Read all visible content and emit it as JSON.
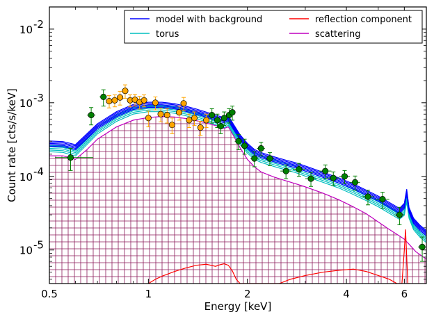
{
  "chart_data": {
    "type": "line",
    "xlabel": "Energy [keV]",
    "ylabel": "Count rate [cts/s/keV]",
    "xscale": "log",
    "yscale": "log",
    "xlim": [
      0.5,
      7.0
    ],
    "ylim": [
      3.5e-06,
      0.02
    ],
    "grid": false,
    "legend_position": "top-right",
    "xticks": [
      {
        "value": 0.5,
        "label": "0.5"
      },
      {
        "value": 1,
        "label": "1"
      },
      {
        "value": 2,
        "label": "2"
      },
      {
        "value": 4,
        "label": "4"
      },
      {
        "value": 6,
        "label": "6"
      }
    ],
    "yticks": [
      {
        "value": 1e-05,
        "base": "10",
        "exp": "-5"
      },
      {
        "value": 0.0001,
        "base": "10",
        "exp": "-4"
      },
      {
        "value": 0.001,
        "base": "10",
        "exp": "-3"
      },
      {
        "value": 0.01,
        "base": "10",
        "exp": "-2"
      }
    ],
    "legend": [
      {
        "label": "model with background",
        "color": "#0000ff"
      },
      {
        "label": "reflection component",
        "color": "#ff0000"
      },
      {
        "label": "torus",
        "color": "#00bfbf"
      },
      {
        "label": "scattering",
        "color": "#bf00bf"
      }
    ],
    "series": [
      {
        "name": "model with background",
        "color": "#0000ff",
        "x": [
          0.5,
          0.55,
          0.6,
          0.65,
          0.7,
          0.8,
          0.9,
          1.0,
          1.1,
          1.2,
          1.3,
          1.4,
          1.5,
          1.6,
          1.7,
          1.75,
          1.8,
          1.9,
          2.0,
          2.1,
          2.2,
          2.4,
          2.6,
          2.8,
          3.0,
          3.4,
          3.8,
          4.2,
          4.6,
          5.0,
          5.4,
          5.8,
          6.0,
          6.1,
          6.2,
          6.4,
          6.7,
          7.0
        ],
        "y": [
          0.00028,
          0.000275,
          0.00025,
          0.00035,
          0.00048,
          0.0007,
          0.00088,
          0.00094,
          0.00094,
          0.0009,
          0.00083,
          0.00076,
          0.00069,
          0.00063,
          0.00058,
          0.00062,
          0.0005,
          0.00034,
          0.00026,
          0.000215,
          0.000195,
          0.000172,
          0.000155,
          0.000142,
          0.000128,
          0.000105,
          8.8e-05,
          7.3e-05,
          6e-05,
          5e-05,
          4.1e-05,
          3.4e-05,
          4e-05,
          6.2e-05,
          3.5e-05,
          2.5e-05,
          2e-05,
          1.7e-05
        ]
      },
      {
        "name": "torus",
        "color": "#00bfbf",
        "x": [
          0.5,
          0.55,
          0.6,
          0.65,
          0.7,
          0.8,
          0.9,
          1.0,
          1.1,
          1.2,
          1.3,
          1.4,
          1.5,
          1.6,
          1.7,
          1.75,
          1.8,
          1.9,
          2.0,
          2.1,
          2.2,
          2.4,
          2.6,
          2.8,
          3.0,
          3.4,
          3.8,
          4.2,
          4.6,
          5.0,
          5.4,
          5.8,
          6.0,
          6.1,
          6.2,
          6.4,
          6.7,
          7.0
        ],
        "y": [
          0.00024,
          0.000235,
          0.00021,
          0.0003,
          0.00042,
          0.00062,
          0.00078,
          0.00084,
          0.00084,
          0.0008,
          0.00074,
          0.00068,
          0.00061,
          0.00056,
          0.00051,
          0.00055,
          0.00044,
          0.0003,
          0.00023,
          0.00019,
          0.000172,
          0.000152,
          0.000137,
          0.000125,
          0.000112,
          9.2e-05,
          7.7e-05,
          6.3e-05,
          5.2e-05,
          4.3e-05,
          3.5e-05,
          2.9e-05,
          3.3e-05,
          5e-05,
          3e-05,
          2.1e-05,
          1.65e-05,
          1.4e-05
        ]
      },
      {
        "name": "scattering",
        "color": "#bf00bf",
        "x": [
          0.5,
          0.55,
          0.6,
          0.65,
          0.7,
          0.8,
          0.9,
          1.0,
          1.1,
          1.2,
          1.3,
          1.4,
          1.5,
          1.6,
          1.7,
          1.75,
          1.8,
          1.9,
          2.0,
          2.1,
          2.2,
          2.4,
          2.6,
          2.8,
          3.0,
          3.4,
          3.8,
          4.2,
          4.6,
          5.0,
          5.4,
          5.8,
          6.0,
          6.2,
          6.5,
          7.0
        ],
        "y": [
          0.00019,
          0.00019,
          0.00017,
          0.00023,
          0.00032,
          0.00047,
          0.00058,
          0.00063,
          0.00065,
          0.00064,
          0.00061,
          0.00057,
          0.00053,
          0.00049,
          0.00045,
          0.00047,
          0.00038,
          0.000245,
          0.00017,
          0.000135,
          0.000115,
          9.85e-05,
          8.8e-05,
          7.95e-05,
          7.2e-05,
          5.9e-05,
          4.8e-05,
          3.85e-05,
          3.1e-05,
          2.4e-05,
          1.9e-05,
          1.55e-05,
          1.4e-05,
          1.2e-05,
          9.5e-06,
          7.5e-06
        ]
      },
      {
        "name": "reflection component",
        "color": "#ff0000",
        "x": [
          1.0,
          1.05,
          1.1,
          1.2,
          1.3,
          1.4,
          1.5,
          1.6,
          1.65,
          1.7,
          1.75,
          1.8,
          1.85,
          1.9,
          2.0,
          2.2,
          2.5,
          2.7,
          3.0,
          3.4,
          3.8,
          4.2,
          4.6,
          5.0,
          5.4,
          5.7,
          5.9,
          6.0,
          6.05,
          6.15,
          6.25
        ],
        "y": [
          3.5e-06,
          4e-06,
          4.4e-06,
          5.1e-06,
          5.7e-06,
          6.2e-06,
          6.4e-06,
          6e-06,
          6.3e-06,
          6.5e-06,
          6.2e-06,
          5.2e-06,
          4e-06,
          3.5e-06,
          3.5e-06,
          3.5e-06,
          3.5e-06,
          4e-06,
          4.5e-06,
          5e-06,
          5.3e-06,
          5.5e-06,
          5.1e-06,
          4.5e-06,
          4e-06,
          3.5e-06,
          3.5e-06,
          1e-05,
          1.9e-05,
          3.5e-06,
          3.5e-06
        ]
      }
    ],
    "data_points": [
      {
        "instrument": "green",
        "color": "#008000",
        "points": [
          {
            "x": 0.58,
            "y": 0.00018,
            "xerr": [
              0.06,
              0.1
            ],
            "yerr": [
              6e-05,
              6e-05
            ]
          },
          {
            "x": 0.67,
            "y": 0.00068,
            "xerr": [
              0.02,
              0.02
            ],
            "yerr": [
              0.00018,
              0.00018
            ]
          },
          {
            "x": 0.73,
            "y": 0.0012,
            "xerr": [
              0.02,
              0.02
            ],
            "yerr": [
              0.0003,
              0.0003
            ]
          },
          {
            "x": 1.56,
            "y": 0.00068,
            "xerr": [
              0.04,
              0.04
            ],
            "yerr": [
              0.00015,
              0.00015
            ]
          },
          {
            "x": 1.62,
            "y": 0.00058,
            "xerr": [
              0.03,
              0.03
            ],
            "yerr": [
              0.00012,
              0.00012
            ]
          },
          {
            "x": 1.66,
            "y": 0.00048,
            "xerr": [
              0.03,
              0.03
            ],
            "yerr": [
              0.0001,
              0.0001
            ]
          },
          {
            "x": 1.7,
            "y": 0.00062,
            "xerr": [
              0.03,
              0.03
            ],
            "yerr": [
              0.00013,
              0.00013
            ]
          },
          {
            "x": 1.76,
            "y": 0.00068,
            "xerr": [
              0.03,
              0.03
            ],
            "yerr": [
              0.00015,
              0.00015
            ]
          },
          {
            "x": 1.8,
            "y": 0.00074,
            "xerr": [
              0.03,
              0.03
            ],
            "yerr": [
              0.00016,
              0.00016
            ]
          },
          {
            "x": 1.88,
            "y": 0.0003,
            "xerr": [
              0.05,
              0.05
            ],
            "yerr": [
              7e-05,
              7e-05
            ]
          },
          {
            "x": 1.96,
            "y": 0.00026,
            "xerr": [
              0.05,
              0.05
            ],
            "yerr": [
              6e-05,
              6e-05
            ]
          },
          {
            "x": 2.1,
            "y": 0.000175,
            "xerr": [
              0.06,
              0.06
            ],
            "yerr": [
              4e-05,
              4e-05
            ]
          },
          {
            "x": 2.2,
            "y": 0.00024,
            "xerr": [
              0.06,
              0.06
            ],
            "yerr": [
              5e-05,
              5e-05
            ]
          },
          {
            "x": 2.34,
            "y": 0.000175,
            "xerr": [
              0.07,
              0.07
            ],
            "yerr": [
              3.5e-05,
              3.5e-05
            ]
          },
          {
            "x": 2.62,
            "y": 0.000118,
            "xerr": [
              0.1,
              0.1
            ],
            "yerr": [
              2.5e-05,
              2.5e-05
            ]
          },
          {
            "x": 2.87,
            "y": 0.000125,
            "xerr": [
              0.12,
              0.12
            ],
            "yerr": [
              2.5e-05,
              2.5e-05
            ]
          },
          {
            "x": 3.12,
            "y": 9.3e-05,
            "xerr": [
              0.12,
              0.12
            ],
            "yerr": [
              2e-05,
              2e-05
            ]
          },
          {
            "x": 3.45,
            "y": 0.000118,
            "xerr": [
              0.15,
              0.15
            ],
            "yerr": [
              2.5e-05,
              2.5e-05
            ]
          },
          {
            "x": 3.65,
            "y": 9.5e-05,
            "xerr": [
              0.15,
              0.15
            ],
            "yerr": [
              2e-05,
              2e-05
            ]
          },
          {
            "x": 3.95,
            "y": 0.0001,
            "xerr": [
              0.15,
              0.15
            ],
            "yerr": [
              2e-05,
              2e-05
            ]
          },
          {
            "x": 4.25,
            "y": 8.3e-05,
            "xerr": [
              0.15,
              0.15
            ],
            "yerr": [
              1.8e-05,
              1.8e-05
            ]
          },
          {
            "x": 4.65,
            "y": 5.3e-05,
            "xerr": [
              0.2,
              0.2
            ],
            "yerr": [
              1.2e-05,
              1.2e-05
            ]
          },
          {
            "x": 5.15,
            "y": 4.9e-05,
            "xerr": [
              0.25,
              0.25
            ],
            "yerr": [
              1.2e-05,
              1.2e-05
            ]
          },
          {
            "x": 5.8,
            "y": 3e-05,
            "xerr": [
              0.2,
              0.2
            ],
            "yerr": [
              8e-06,
              8e-06
            ]
          },
          {
            "x": 6.8,
            "y": 1.1e-05,
            "xerr": [
              0.2,
              0.2
            ],
            "yerr": [
              4e-06,
              4e-06
            ]
          }
        ]
      },
      {
        "instrument": "orange",
        "color": "#ffa500",
        "points": [
          {
            "x": 0.76,
            "y": 0.00105,
            "xerr": [
              0.015,
              0.015
            ],
            "yerr": [
              0.0002,
              0.0002
            ]
          },
          {
            "x": 0.79,
            "y": 0.00108,
            "xerr": [
              0.015,
              0.015
            ],
            "yerr": [
              0.0002,
              0.0002
            ]
          },
          {
            "x": 0.82,
            "y": 0.00118,
            "xerr": [
              0.015,
              0.015
            ],
            "yerr": [
              0.00025,
              0.00025
            ]
          },
          {
            "x": 0.85,
            "y": 0.00145,
            "xerr": [
              0.015,
              0.015
            ],
            "yerr": [
              0.0003,
              0.0003
            ]
          },
          {
            "x": 0.88,
            "y": 0.00108,
            "xerr": [
              0.015,
              0.015
            ],
            "yerr": [
              0.0002,
              0.0002
            ]
          },
          {
            "x": 0.91,
            "y": 0.0011,
            "xerr": [
              0.015,
              0.015
            ],
            "yerr": [
              0.0002,
              0.0002
            ]
          },
          {
            "x": 0.94,
            "y": 0.00102,
            "xerr": [
              0.015,
              0.015
            ],
            "yerr": [
              0.0002,
              0.0002
            ]
          },
          {
            "x": 0.97,
            "y": 0.00108,
            "xerr": [
              0.015,
              0.015
            ],
            "yerr": [
              0.0002,
              0.0002
            ]
          },
          {
            "x": 1.0,
            "y": 0.00062,
            "xerr": [
              0.02,
              0.02
            ],
            "yerr": [
              0.00015,
              0.00015
            ]
          },
          {
            "x": 1.05,
            "y": 0.001,
            "xerr": [
              0.02,
              0.02
            ],
            "yerr": [
              0.0002,
              0.0002
            ]
          },
          {
            "x": 1.09,
            "y": 0.0007,
            "xerr": [
              0.02,
              0.02
            ],
            "yerr": [
              0.00015,
              0.00015
            ]
          },
          {
            "x": 1.14,
            "y": 0.00068,
            "xerr": [
              0.02,
              0.02
            ],
            "yerr": [
              0.00015,
              0.00015
            ]
          },
          {
            "x": 1.18,
            "y": 0.0005,
            "xerr": [
              0.02,
              0.02
            ],
            "yerr": [
              0.00012,
              0.00012
            ]
          },
          {
            "x": 1.24,
            "y": 0.00074,
            "xerr": [
              0.025,
              0.025
            ],
            "yerr": [
              0.00016,
              0.00016
            ]
          },
          {
            "x": 1.28,
            "y": 0.00098,
            "xerr": [
              0.025,
              0.025
            ],
            "yerr": [
              0.0002,
              0.0002
            ]
          },
          {
            "x": 1.33,
            "y": 0.00058,
            "xerr": [
              0.025,
              0.025
            ],
            "yerr": [
              0.00012,
              0.00012
            ]
          },
          {
            "x": 1.38,
            "y": 0.00062,
            "xerr": [
              0.025,
              0.025
            ],
            "yerr": [
              0.00013,
              0.00013
            ]
          },
          {
            "x": 1.44,
            "y": 0.00046,
            "xerr": [
              0.025,
              0.025
            ],
            "yerr": [
              0.0001,
              0.0001
            ]
          },
          {
            "x": 1.5,
            "y": 0.00058,
            "xerr": [
              0.03,
              0.03
            ],
            "yerr": [
              0.00012,
              0.00012
            ]
          }
        ]
      }
    ]
  }
}
